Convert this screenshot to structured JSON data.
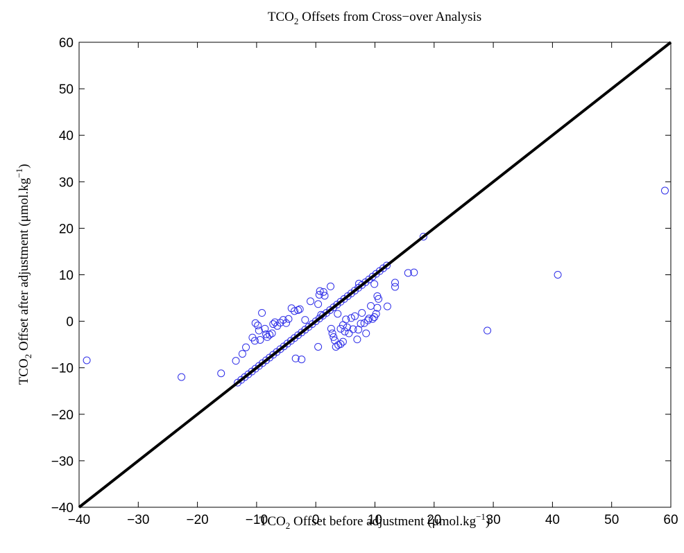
{
  "chart_data": {
    "type": "scatter",
    "title": {
      "pre": "TCO",
      "sub": "2",
      "post": " Offsets from Cross−over Analysis"
    },
    "xlabel": {
      "pre": "TCO",
      "sub": "2",
      "post": " Offset before adjustment (μmol.kg",
      "sup": "−1",
      "end": ")"
    },
    "ylabel": {
      "pre": "TCO",
      "sub": "2",
      "post": " Offset after adjustment (μmol.kg",
      "sup": "−1",
      "end": ")"
    },
    "xlim": [
      -40,
      60
    ],
    "ylim": [
      -40,
      60
    ],
    "xticks": [
      -40,
      -30,
      -20,
      -10,
      0,
      10,
      20,
      30,
      40,
      50,
      60
    ],
    "yticks": [
      -40,
      -30,
      -20,
      -10,
      0,
      10,
      20,
      30,
      40,
      50,
      60
    ],
    "xtick_labels": [
      "−40",
      "−30",
      "−20",
      "−10",
      "0",
      "10",
      "20",
      "30",
      "40",
      "50",
      "60"
    ],
    "ytick_labels": [
      "−40",
      "−30",
      "−20",
      "−10",
      "0",
      "10",
      "20",
      "30",
      "40",
      "50",
      "60"
    ],
    "grid": false,
    "reference_line": {
      "x": [
        -40,
        60
      ],
      "y": [
        -40,
        60
      ],
      "color": "#000000"
    },
    "marker_color": "#2e2ee8",
    "series": [
      {
        "points": [
          [
            -38.7,
            -8.4
          ],
          [
            -22.7,
            -12.0
          ],
          [
            -16.0,
            -11.2
          ],
          [
            -13.5,
            -8.5
          ],
          [
            -12.4,
            -7.0
          ],
          [
            -11.8,
            -5.6
          ],
          [
            -10.7,
            -3.5
          ],
          [
            -10.3,
            -4.2
          ],
          [
            -10.2,
            -0.4
          ],
          [
            -9.8,
            -0.9
          ],
          [
            -9.4,
            -4.0
          ],
          [
            -9.1,
            1.8
          ],
          [
            -9.6,
            -2.0
          ],
          [
            -8.6,
            -1.6
          ],
          [
            -8.4,
            -2.8
          ],
          [
            -8.2,
            -3.4
          ],
          [
            -7.8,
            -2.9
          ],
          [
            -7.4,
            -2.6
          ],
          [
            -7.2,
            -0.6
          ],
          [
            -6.9,
            -0.2
          ],
          [
            -6.5,
            -1.0
          ],
          [
            -6.0,
            -0.3
          ],
          [
            -5.5,
            0.3
          ],
          [
            -5.0,
            -0.4
          ],
          [
            -4.6,
            0.5
          ],
          [
            -4.1,
            2.8
          ],
          [
            -3.6,
            2.2
          ],
          [
            -3.0,
            2.4
          ],
          [
            -2.7,
            2.6
          ],
          [
            -3.4,
            -8.0
          ],
          [
            -2.4,
            -8.2
          ],
          [
            -1.8,
            0.3
          ],
          [
            -0.9,
            4.3
          ],
          [
            0.4,
            3.7
          ],
          [
            0.7,
            6.5
          ],
          [
            0.6,
            5.7
          ],
          [
            1.3,
            6.3
          ],
          [
            1.5,
            5.5
          ],
          [
            0.4,
            -5.5
          ],
          [
            0.9,
            1.4
          ],
          [
            2.5,
            7.5
          ],
          [
            2.6,
            -1.6
          ],
          [
            2.8,
            -2.6
          ],
          [
            3.0,
            -3.4
          ],
          [
            3.2,
            -4.1
          ],
          [
            3.4,
            -5.5
          ],
          [
            3.8,
            -5.1
          ],
          [
            4.2,
            -4.9
          ],
          [
            4.6,
            -4.4
          ],
          [
            3.7,
            1.6
          ],
          [
            4.2,
            -1.6
          ],
          [
            4.6,
            -0.8
          ],
          [
            4.9,
            -2.2
          ],
          [
            5.1,
            0.4
          ],
          [
            5.3,
            -1.3
          ],
          [
            5.6,
            -2.6
          ],
          [
            6.0,
            0.7
          ],
          [
            6.3,
            -1.7
          ],
          [
            6.6,
            1.1
          ],
          [
            7.0,
            -3.9
          ],
          [
            7.2,
            -1.8
          ],
          [
            7.6,
            -0.5
          ],
          [
            7.8,
            1.8
          ],
          [
            8.2,
            -0.4
          ],
          [
            8.5,
            -2.6
          ],
          [
            8.8,
            0.2
          ],
          [
            9.0,
            0.6
          ],
          [
            9.3,
            3.3
          ],
          [
            9.6,
            0.5
          ],
          [
            9.9,
            0.9
          ],
          [
            10.2,
            1.6
          ],
          [
            10.4,
            2.9
          ],
          [
            10.6,
            4.8
          ],
          [
            10.4,
            5.4
          ],
          [
            9.9,
            8.0
          ],
          [
            7.3,
            8.1
          ],
          [
            12.1,
            3.2
          ],
          [
            13.4,
            7.4
          ],
          [
            13.4,
            8.3
          ],
          [
            15.6,
            10.4
          ],
          [
            16.6,
            10.5
          ],
          [
            18.2,
            18.2
          ],
          [
            29.0,
            -2.0
          ],
          [
            40.9,
            10.0
          ],
          [
            59.0,
            28.1
          ],
          [
            12.0,
            12.0
          ],
          [
            11.4,
            11.4
          ],
          [
            10.8,
            10.8
          ],
          [
            10.2,
            10.2
          ],
          [
            9.6,
            9.6
          ],
          [
            9.0,
            9.0
          ],
          [
            8.4,
            8.4
          ],
          [
            7.8,
            7.8
          ],
          [
            7.2,
            7.2
          ],
          [
            6.6,
            6.6
          ],
          [
            6.0,
            6.0
          ],
          [
            5.4,
            5.4
          ],
          [
            4.8,
            4.8
          ],
          [
            4.2,
            4.2
          ],
          [
            3.6,
            3.6
          ],
          [
            3.0,
            3.0
          ],
          [
            2.4,
            2.4
          ],
          [
            1.8,
            1.8
          ],
          [
            1.2,
            1.2
          ],
          [
            0.6,
            0.6
          ],
          [
            0.0,
            0.0
          ],
          [
            -0.6,
            -0.6
          ],
          [
            -1.2,
            -1.2
          ],
          [
            -1.8,
            -1.8
          ],
          [
            -2.4,
            -2.4
          ],
          [
            -3.0,
            -3.0
          ],
          [
            -3.6,
            -3.6
          ],
          [
            -4.2,
            -4.2
          ],
          [
            -4.8,
            -4.8
          ],
          [
            -5.4,
            -5.4
          ],
          [
            -6.0,
            -6.0
          ],
          [
            -6.6,
            -6.6
          ],
          [
            -7.2,
            -7.2
          ],
          [
            -7.8,
            -7.8
          ],
          [
            -8.4,
            -8.4
          ],
          [
            -9.0,
            -9.0
          ],
          [
            -9.6,
            -9.6
          ],
          [
            -10.2,
            -10.2
          ],
          [
            -10.8,
            -10.8
          ],
          [
            -11.4,
            -11.4
          ],
          [
            -12.0,
            -12.0
          ],
          [
            -12.6,
            -12.6
          ],
          [
            -13.2,
            -13.2
          ]
        ]
      }
    ]
  }
}
